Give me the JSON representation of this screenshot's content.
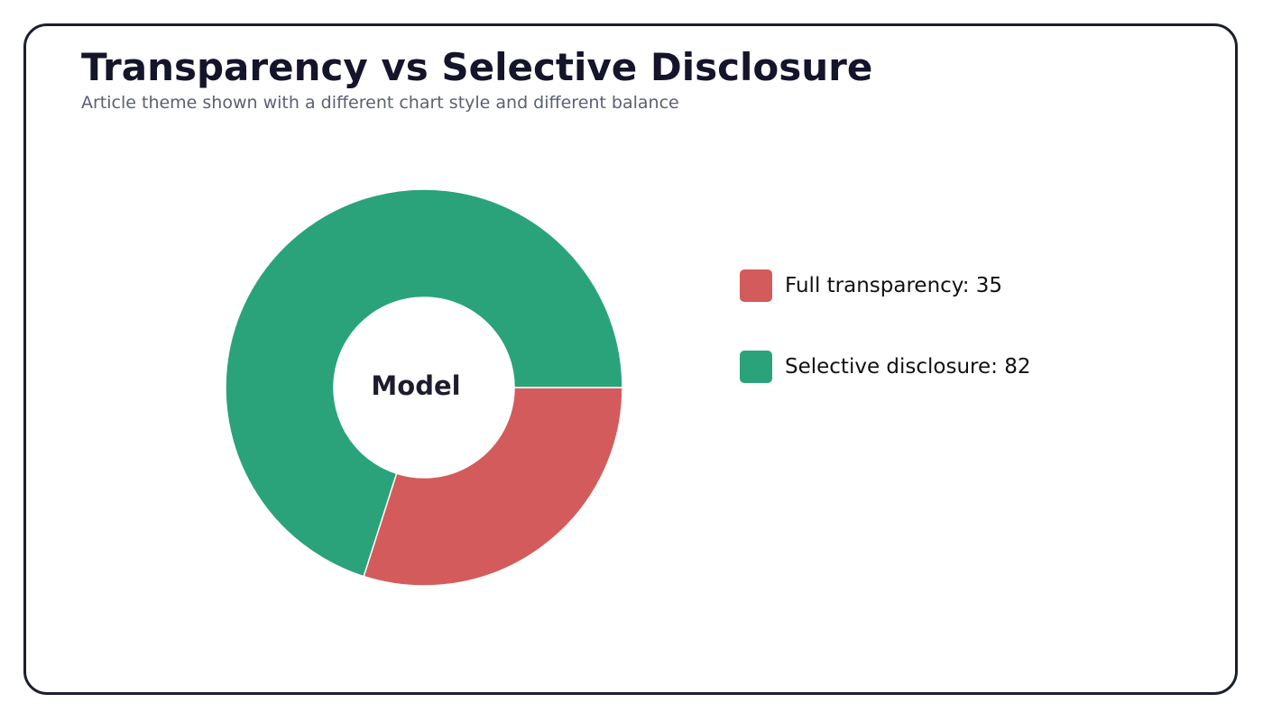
{
  "header": {
    "title": "Transparency vs Selective Disclosure",
    "subtitle": "Article theme shown with a different chart style and different balance"
  },
  "chart_data": {
    "type": "pie",
    "variant": "donut",
    "center_label": "Model",
    "categories": [
      "Full transparency",
      "Selective disclosure"
    ],
    "values": [
      35,
      82
    ],
    "colors": [
      "#d45b5b",
      "#2aa37a"
    ],
    "legend": {
      "placement": "right",
      "entries": [
        "Full transparency: 35",
        "Selective disclosure: 82"
      ]
    }
  }
}
